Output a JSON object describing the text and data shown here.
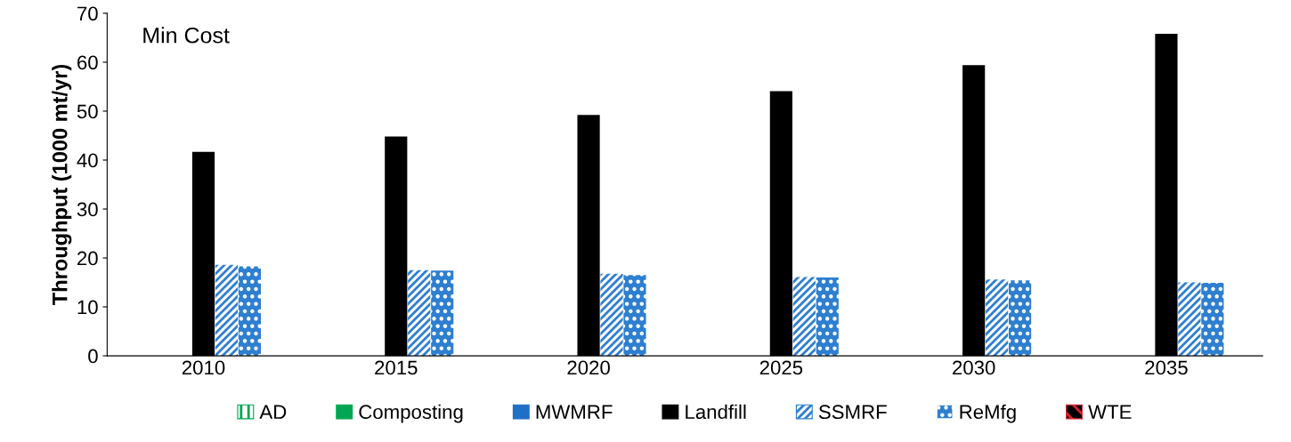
{
  "chart_data": {
    "type": "bar",
    "categories": [
      "2010",
      "2015",
      "2020",
      "2025",
      "2030",
      "2035"
    ],
    "ylabel": "Throughput (1000 mt/yr)",
    "annotations": [
      "Min Cost"
    ],
    "ylim": [
      0,
      70
    ],
    "yticks": [
      0,
      10,
      20,
      30,
      40,
      50,
      60,
      70
    ],
    "grid": false,
    "legend": "bottom",
    "series": [
      {
        "name": "AD",
        "color": "#00a651",
        "values": [
          0,
          0,
          0,
          0,
          0,
          0
        ]
      },
      {
        "name": "Composting",
        "color": "#00a651",
        "values": [
          0,
          0,
          0,
          0,
          0,
          0
        ]
      },
      {
        "name": "MWMRF",
        "color": "#1f6fc5",
        "values": [
          0,
          0,
          0,
          0,
          0,
          0
        ]
      },
      {
        "name": "Landfill",
        "color": "#000000",
        "values": [
          41.7,
          44.8,
          49.2,
          54.1,
          59.4,
          65.8
        ]
      },
      {
        "name": "SSMRF",
        "color": "#2e7fd0",
        "values": [
          18.6,
          17.5,
          16.8,
          16.1,
          15.6,
          15.0
        ]
      },
      {
        "name": "ReMfg",
        "color": "#2e7fd0",
        "values": [
          18.3,
          17.4,
          16.5,
          16.0,
          15.4,
          14.9
        ]
      },
      {
        "name": "WTE",
        "color": "#e0202a",
        "values": [
          0,
          0,
          0,
          0,
          0,
          0
        ]
      }
    ]
  }
}
